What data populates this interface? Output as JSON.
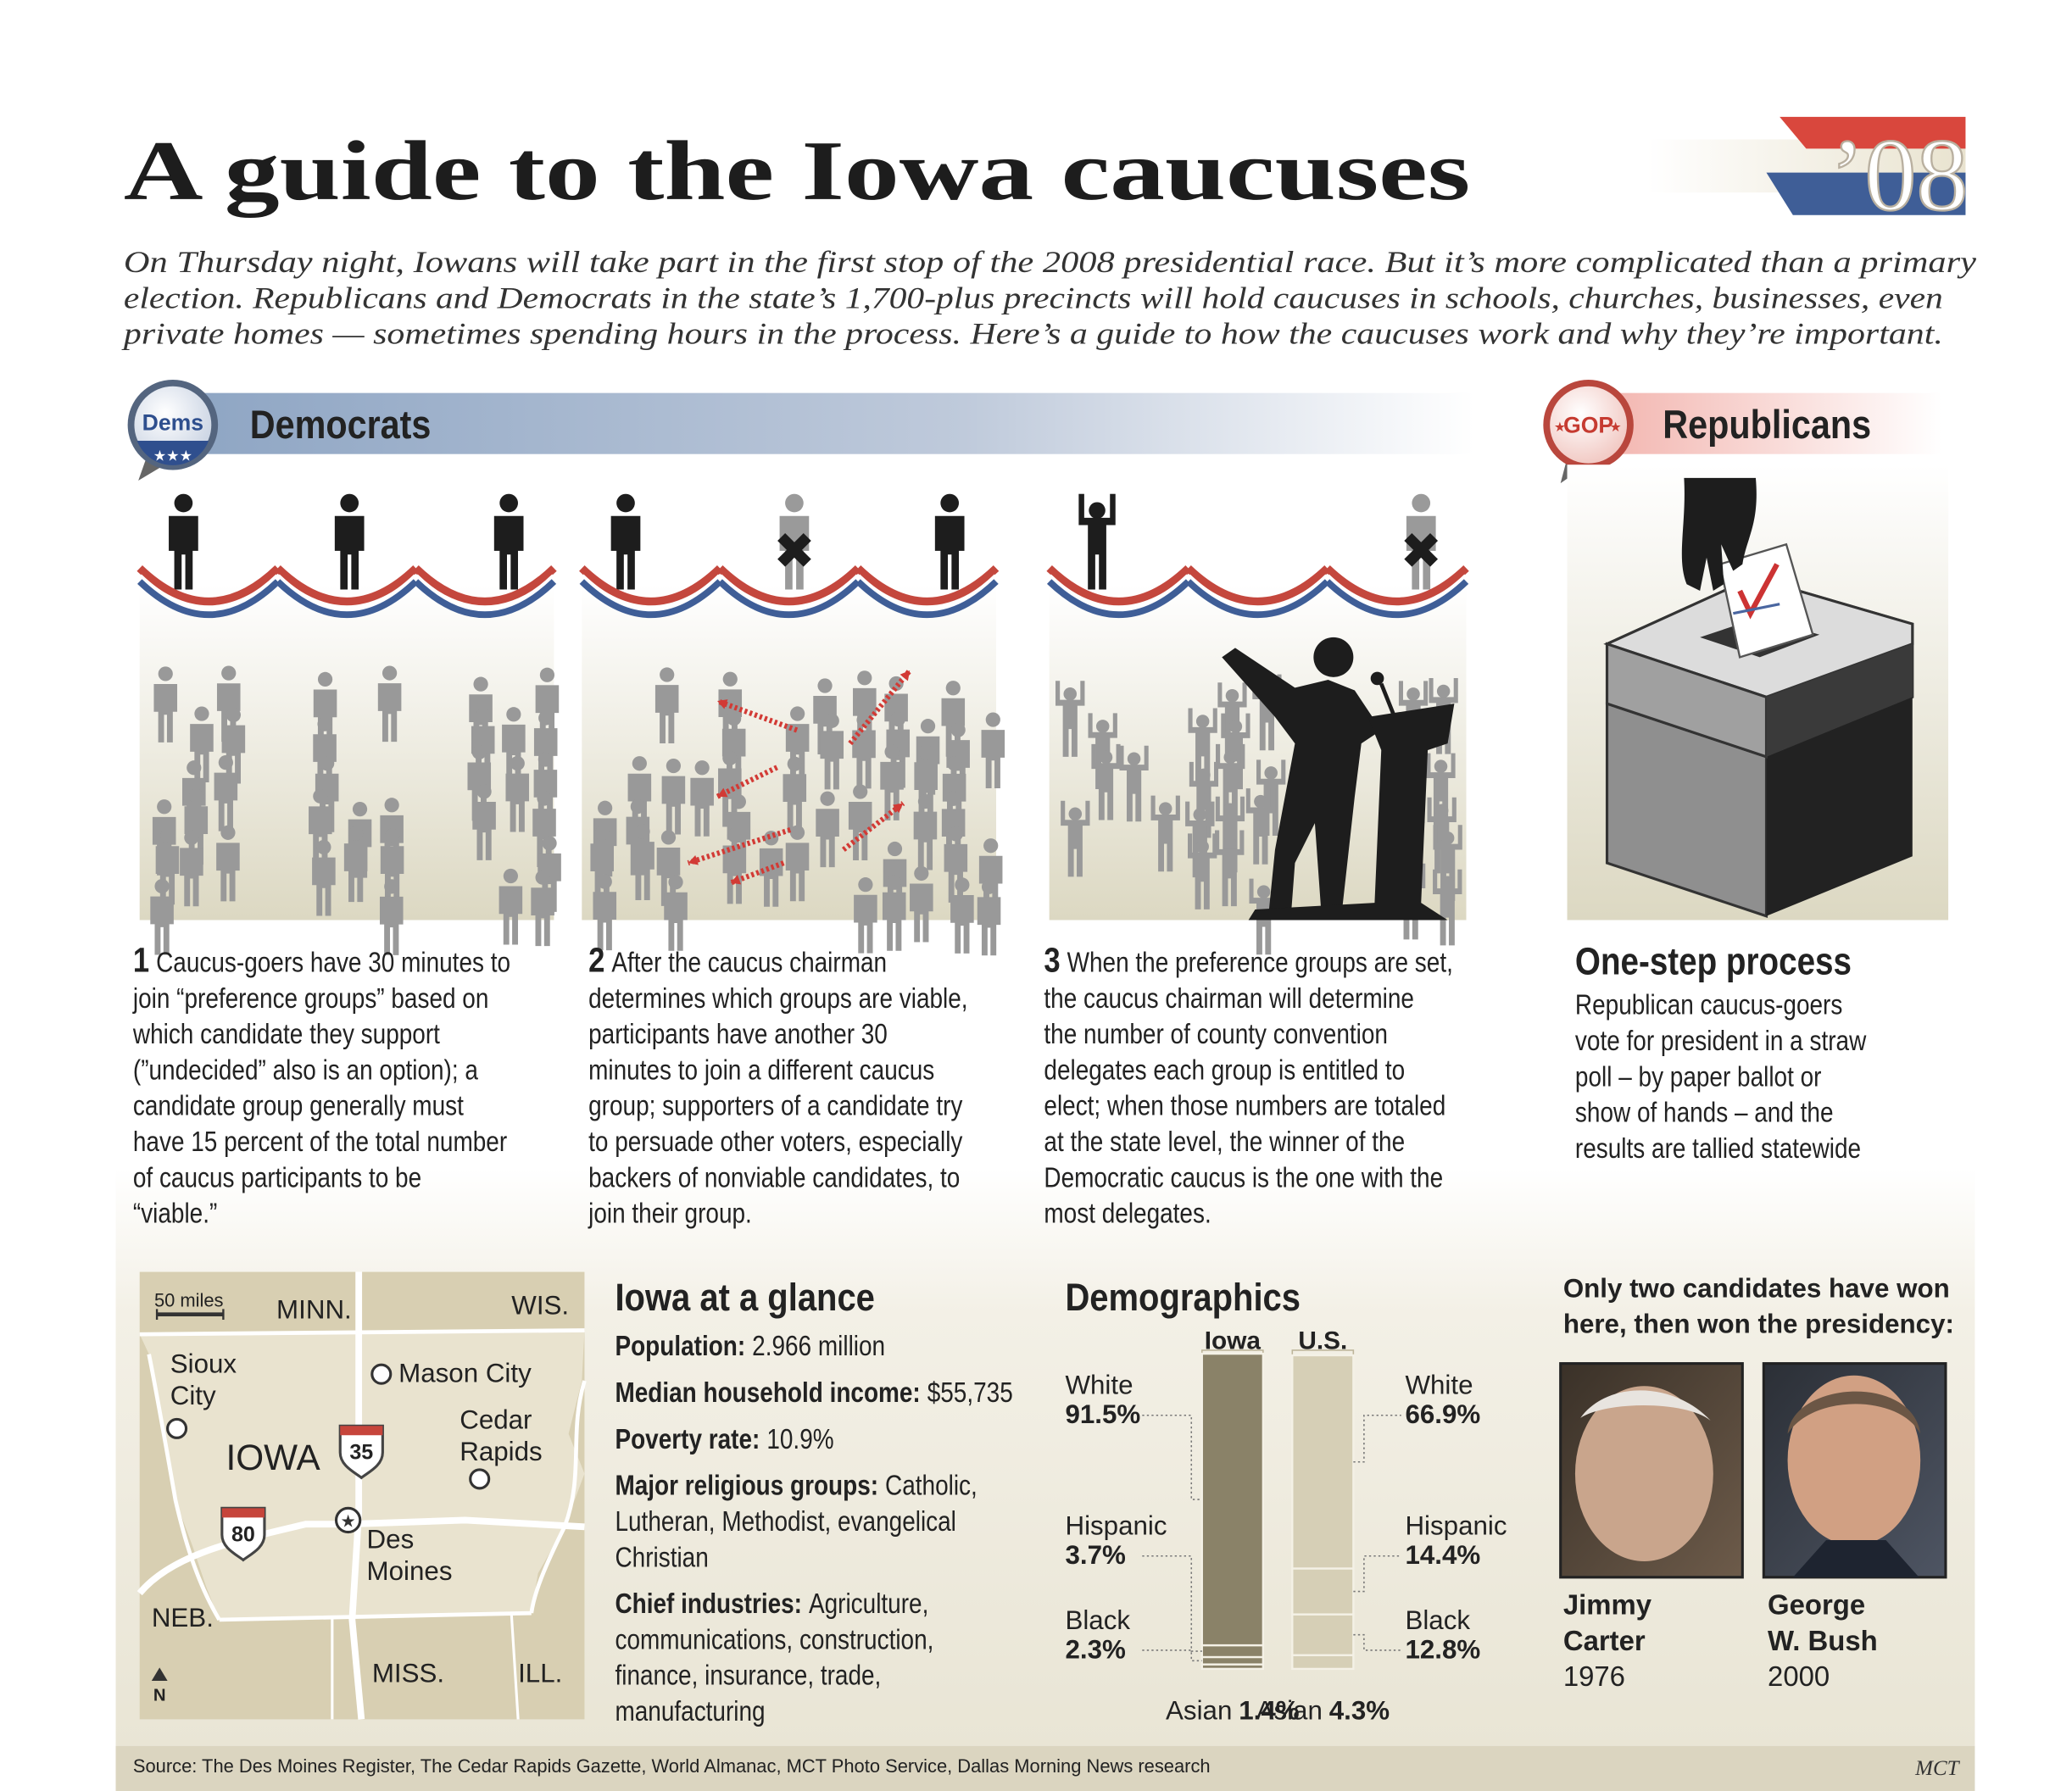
{
  "header": {
    "title": "A guide to the Iowa caucuses",
    "logo": "’08",
    "intro": [
      "On Thursday night, Iowans will take part in the first stop of the 2008 presidential race. But it’s more complicated than a primary",
      "election. Republicans and Democrats in the state’s 1,700-plus precincts will hold caucuses in schools, churches,  businesses, even",
      "private homes — sometimes spending hours in the process. Here’s a guide to how the caucuses work and why they’re important."
    ]
  },
  "democrats": {
    "badge": "Dems",
    "label": "Democrats",
    "steps": [
      {
        "number": "1",
        "lines": [
          "Caucus-goers have 30 minutes to",
          "join “preference groups” based on",
          "which candidate they support",
          "(”undecided” also is an option); a",
          "candidate group generally must",
          "have 15 percent of the total number",
          "of caucus participants to be",
          "“viable.”"
        ]
      },
      {
        "number": "2",
        "lines": [
          "After the caucus chairman",
          "determines which groups are viable,",
          "participants have another 30",
          "minutes to join a different caucus",
          "group; supporters of a candidate try",
          "to persuade other voters, especially",
          "backers of nonviable candidates, to",
          "join their group."
        ]
      },
      {
        "number": "3",
        "lines": [
          "When the preference groups are set,",
          "the caucus chairman will determine",
          "the number of county convention",
          "delegates each group is entitled to",
          "elect; when those numbers are totaled",
          "at the state level, the winner of the",
          "Democratic caucus is the one with the",
          "most delegates."
        ]
      }
    ]
  },
  "republicans": {
    "badge": "GOP",
    "label": "Republicans",
    "heading": "One-step process",
    "lines": [
      "Republican caucus-goers",
      "vote for president in a straw",
      "poll – by paper ballot or",
      "show of hands – and the",
      "results are tallied statewide"
    ]
  },
  "map": {
    "scale": "50 miles",
    "states": [
      "MINN.",
      "WIS.",
      "NEB.",
      "MISS.",
      "ILL."
    ],
    "state_name": "IOWA",
    "cities": [
      [
        "Sioux",
        "City"
      ],
      [
        "Mason City"
      ],
      [
        "Cedar",
        "Rapids"
      ],
      [
        "Des",
        "Moines"
      ]
    ],
    "highways": [
      "35",
      "80"
    ],
    "north": "N"
  },
  "glance": {
    "title": "Iowa at a glance",
    "items": [
      {
        "label": "Population:",
        "lines": [
          "2.966 million"
        ]
      },
      {
        "label": "Median household income:",
        "lines": [
          "$55,735"
        ]
      },
      {
        "label": "Poverty rate:",
        "lines": [
          "10.9%"
        ]
      },
      {
        "label": "Major religious groups:",
        "lines": [
          "Catholic,",
          "Lutheran, Methodist, evangelical",
          "Christian"
        ]
      },
      {
        "label": "Chief industries:",
        "lines": [
          "Agriculture,",
          "communications, construction,",
          "finance, insurance, trade,",
          "manufacturing"
        ]
      }
    ]
  },
  "demographics": {
    "type": "stacked-bar",
    "title": "Demographics",
    "categories": [
      "White",
      "Hispanic",
      "Black",
      "Asian"
    ],
    "series": [
      {
        "name": "Iowa",
        "color": "#8a8268",
        "values": [
          91.5,
          3.7,
          2.3,
          1.4
        ],
        "value_labels": [
          "91.5%",
          "3.7%",
          "2.3%",
          "1.4%"
        ]
      },
      {
        "name": "U.S.",
        "color": "#d6cfb6",
        "values": [
          66.9,
          14.4,
          12.8,
          4.3
        ],
        "value_labels": [
          "66.9%",
          "14.4%",
          "12.8%",
          "4.3%"
        ]
      }
    ]
  },
  "winners": {
    "heading": [
      "Only two candidates have won",
      "here, then won the presidency:"
    ],
    "people": [
      {
        "name": [
          "Jimmy",
          "Carter"
        ],
        "year": "1976"
      },
      {
        "name": [
          "George",
          "W. Bush"
        ],
        "year": "2000"
      }
    ]
  },
  "footer": {
    "source": "Source: The Des Moines Register, The Cedar Rapids Gazette, World Almanac, MCT Photo Service, Dallas Morning News research",
    "credit": "MCT"
  }
}
